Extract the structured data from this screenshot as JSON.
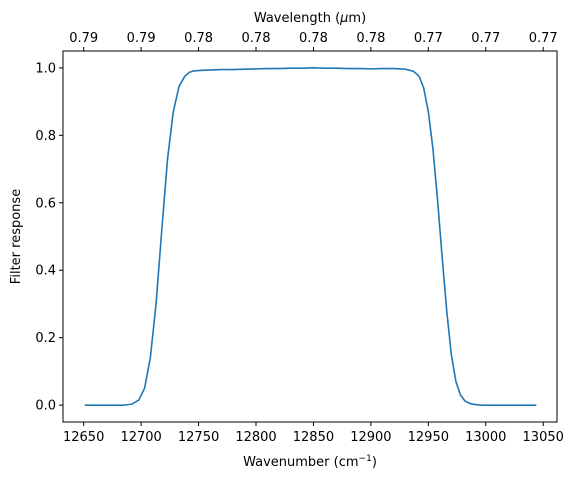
{
  "chart_data": {
    "type": "line",
    "title": "",
    "xlabel": "Wavenumber (cm",
    "xlabel_sup": "−1",
    "xlabel_end": ")",
    "ylabel": "Filter response",
    "top_xlabel_pre": "Wavelength (",
    "top_xlabel_mu": "μ",
    "top_xlabel_post": "m)",
    "xlim": [
      12632,
      13062
    ],
    "ylim": [
      -0.05,
      1.05
    ],
    "x_ticks": [
      12650,
      12700,
      12750,
      12800,
      12850,
      12900,
      12950,
      13000,
      13050
    ],
    "y_ticks": [
      0.0,
      0.2,
      0.4,
      0.6,
      0.8,
      1.0
    ],
    "y_tick_labels": [
      "0.0",
      "0.2",
      "0.4",
      "0.6",
      "0.8",
      "1.0"
    ],
    "top_ticks": [
      12650,
      12700,
      12750,
      12800,
      12850,
      12900,
      12950,
      13000,
      13050
    ],
    "top_tick_labels": [
      "0.79",
      "0.79",
      "0.78",
      "0.78",
      "0.78",
      "0.78",
      "0.77",
      "0.77",
      "0.77"
    ],
    "grid": false,
    "series": [
      {
        "color": "#1f77b4",
        "x": [
          12651,
          12670,
          12685,
          12692,
          12698,
          12703,
          12708,
          12713,
          12718,
          12723,
          12728,
          12733,
          12738,
          12742,
          12746,
          12750,
          12755,
          12762,
          12770,
          12780,
          12790,
          12800,
          12810,
          12820,
          12830,
          12840,
          12850,
          12860,
          12870,
          12880,
          12890,
          12900,
          12910,
          12920,
          12930,
          12937,
          12942,
          12946,
          12950,
          12954,
          12958,
          12962,
          12966,
          12970,
          12974,
          12978,
          12982,
          12986,
          12990,
          12996,
          13005,
          13025,
          13044
        ],
        "y": [
          0.0,
          0.0,
          0.0,
          0.003,
          0.015,
          0.05,
          0.14,
          0.3,
          0.52,
          0.73,
          0.87,
          0.945,
          0.975,
          0.987,
          0.991,
          0.992,
          0.993,
          0.994,
          0.995,
          0.995,
          0.996,
          0.997,
          0.998,
          0.998,
          0.999,
          0.999,
          1.0,
          0.999,
          0.999,
          0.998,
          0.998,
          0.997,
          0.998,
          0.998,
          0.996,
          0.99,
          0.975,
          0.94,
          0.87,
          0.76,
          0.61,
          0.44,
          0.28,
          0.15,
          0.07,
          0.03,
          0.012,
          0.005,
          0.002,
          0.0,
          0.0,
          0.0,
          0.0
        ]
      }
    ]
  }
}
